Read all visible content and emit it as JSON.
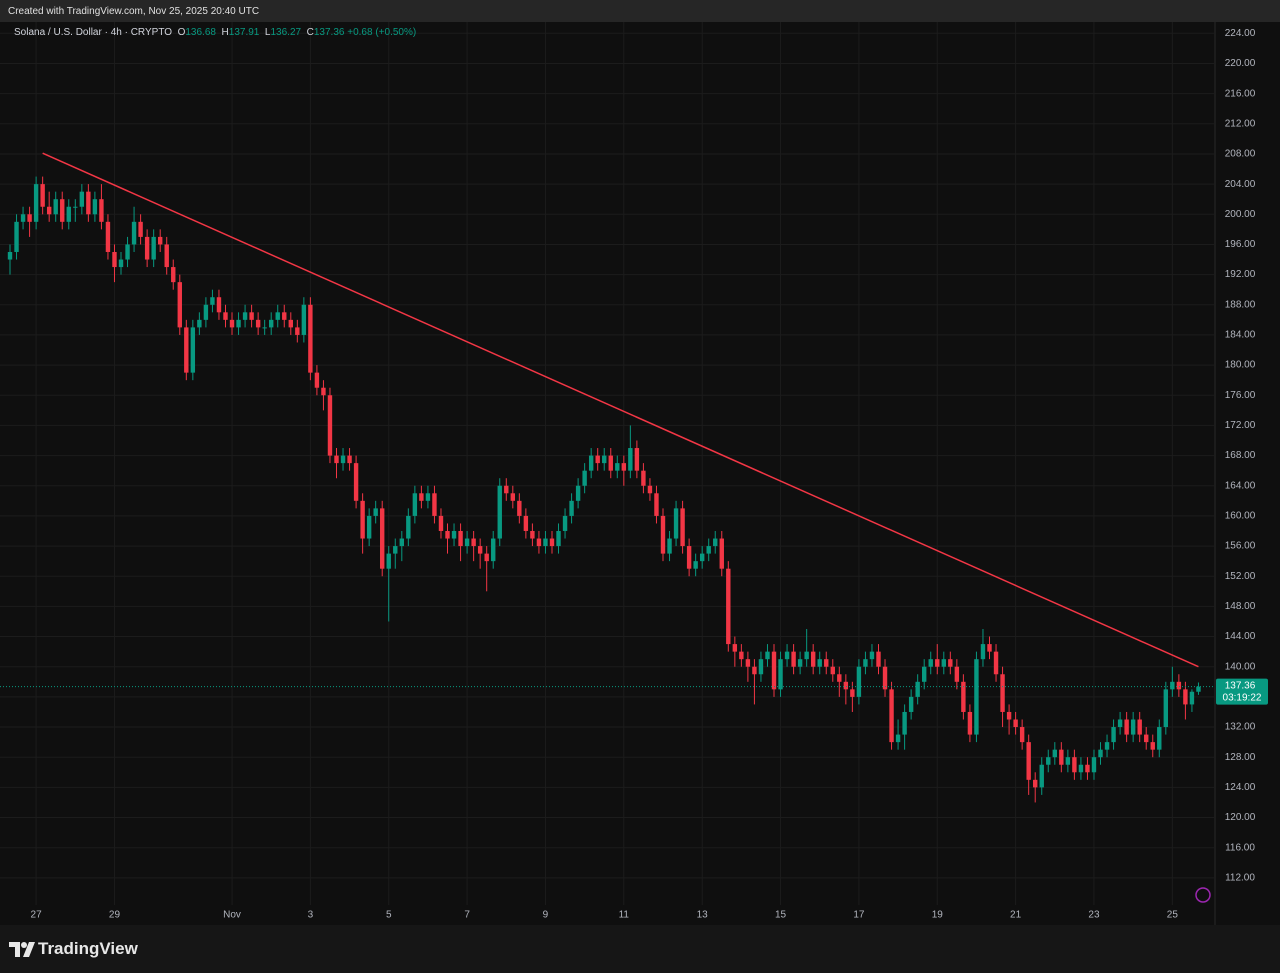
{
  "created_with": "Created with TradingView.com, Nov 25, 2025 20:40 UTC",
  "logo": "TradingView",
  "chart_data": {
    "type": "candlestick",
    "title": "Solana / U.S. Dollar · 4h · CRYPTO",
    "ohlc_labels": [
      "O",
      "H",
      "L",
      "C"
    ],
    "change": "+0.68 (+0.50%)",
    "countdown": "03:19:22",
    "up_color": "#089981",
    "down_color": "#f23645",
    "grid": true,
    "ylim": [
      108.4,
      225.5
    ],
    "yticks": [
      {
        "value": 112,
        "label": "112.00"
      },
      {
        "value": 116,
        "label": "116.00"
      },
      {
        "value": 120,
        "label": "120.00"
      },
      {
        "value": 124,
        "label": "124.00"
      },
      {
        "value": 128,
        "label": "128.00"
      },
      {
        "value": 132,
        "label": "132.00"
      },
      {
        "value": 136,
        "label": "136.00"
      },
      {
        "value": 140,
        "label": "140.00"
      },
      {
        "value": 144,
        "label": "144.00"
      },
      {
        "value": 148,
        "label": "148.00"
      },
      {
        "value": 152,
        "label": "152.00"
      },
      {
        "value": 156,
        "label": "156.00"
      },
      {
        "value": 160,
        "label": "160.00"
      },
      {
        "value": 164,
        "label": "164.00"
      },
      {
        "value": 168,
        "label": "168.00"
      },
      {
        "value": 172,
        "label": "172.00"
      },
      {
        "value": 176,
        "label": "176.00"
      },
      {
        "value": 180,
        "label": "180.00"
      },
      {
        "value": 184,
        "label": "184.00"
      },
      {
        "value": 188,
        "label": "188.00"
      },
      {
        "value": 192,
        "label": "192.00"
      },
      {
        "value": 196,
        "label": "196.00"
      },
      {
        "value": 200,
        "label": "200.00"
      },
      {
        "value": 204,
        "label": "204.00"
      },
      {
        "value": 208,
        "label": "208.00"
      },
      {
        "value": 212,
        "label": "212.00"
      },
      {
        "value": 216,
        "label": "216.00"
      },
      {
        "value": 220,
        "label": "220.00"
      },
      {
        "value": 224,
        "label": "224.00"
      }
    ],
    "categories": [
      null,
      null,
      null,
      null,
      "27",
      null,
      null,
      null,
      null,
      null,
      null,
      null,
      null,
      null,
      null,
      null,
      "29",
      null,
      null,
      null,
      null,
      null,
      null,
      null,
      null,
      null,
      null,
      null,
      null,
      null,
      null,
      null,
      null,
      null,
      "Nov",
      null,
      null,
      null,
      null,
      null,
      null,
      null,
      null,
      null,
      null,
      null,
      "3",
      null,
      null,
      null,
      null,
      null,
      null,
      null,
      null,
      null,
      null,
      null,
      "5",
      null,
      null,
      null,
      null,
      null,
      null,
      null,
      null,
      null,
      null,
      null,
      "7",
      null,
      null,
      null,
      null,
      null,
      null,
      null,
      null,
      null,
      null,
      null,
      "9",
      null,
      null,
      null,
      null,
      null,
      null,
      null,
      null,
      null,
      null,
      null,
      "11",
      null,
      null,
      null,
      null,
      null,
      null,
      null,
      null,
      null,
      null,
      null,
      "13",
      null,
      null,
      null,
      null,
      null,
      null,
      null,
      null,
      null,
      null,
      null,
      "15",
      null,
      null,
      null,
      null,
      null,
      null,
      null,
      null,
      null,
      null,
      null,
      "17",
      null,
      null,
      null,
      null,
      null,
      null,
      null,
      null,
      null,
      null,
      null,
      "19",
      null,
      null,
      null,
      null,
      null,
      null,
      null,
      null,
      null,
      null,
      null,
      "21",
      null,
      null,
      null,
      null,
      null,
      null,
      null,
      null,
      null,
      null,
      null,
      "23",
      null,
      null,
      null,
      null,
      null,
      null,
      null,
      null,
      null,
      null,
      null,
      "25",
      null,
      null,
      null,
      null
    ],
    "open": [
      194,
      195,
      199,
      200,
      199,
      204,
      201,
      200,
      202,
      199,
      201,
      201,
      203,
      200,
      202,
      199,
      195,
      193,
      194,
      196,
      199,
      197,
      194,
      197,
      196,
      193,
      191,
      185,
      179,
      185,
      186,
      188,
      189,
      187,
      186,
      185,
      186,
      187,
      186,
      185,
      185,
      186,
      187,
      186,
      185,
      184,
      188,
      179,
      177,
      176,
      168,
      167,
      168,
      167,
      162,
      157,
      160,
      161,
      153,
      155,
      156,
      157,
      160,
      163,
      162,
      163,
      160,
      158,
      157,
      158,
      156,
      157,
      156,
      155,
      154,
      157,
      164,
      163,
      162,
      160,
      158,
      157,
      156,
      157,
      156,
      158,
      160,
      162,
      164,
      166,
      168,
      167,
      168,
      166,
      167,
      166,
      169,
      166,
      164,
      163,
      160,
      155,
      157,
      161,
      156,
      153,
      154,
      155,
      156,
      157,
      153,
      143,
      142,
      141,
      140,
      139,
      141,
      142,
      137,
      141,
      142,
      140,
      141,
      142,
      140,
      141,
      140,
      139,
      138,
      137,
      136,
      140,
      141,
      142,
      140,
      137,
      130,
      131,
      134,
      136,
      138,
      140,
      141,
      140,
      141,
      140,
      138,
      134,
      131,
      141,
      143,
      142,
      139,
      134,
      133,
      132,
      130,
      125,
      124,
      127,
      128,
      129,
      127,
      128,
      126,
      127,
      126,
      128,
      129,
      130,
      132,
      133,
      131,
      133,
      131,
      130,
      129,
      132,
      137,
      138,
      137,
      135,
      136.68
    ],
    "high": [
      196,
      200,
      201,
      201,
      205,
      205,
      203,
      203,
      203,
      202,
      202,
      204,
      204,
      203,
      204,
      200,
      196,
      195,
      197,
      201,
      200,
      198,
      198,
      198,
      197,
      194,
      192,
      186,
      186,
      187,
      189,
      190,
      190,
      188,
      187,
      187,
      188,
      188,
      187,
      186,
      187,
      188,
      188,
      187,
      186,
      189,
      189,
      180,
      178,
      177,
      169,
      169,
      169,
      168,
      163,
      161,
      162,
      162,
      156,
      157,
      158,
      161,
      164,
      164,
      164,
      164,
      161,
      159,
      159,
      159,
      158,
      158,
      157,
      156,
      158,
      165,
      165,
      164,
      163,
      161,
      159,
      158,
      158,
      158,
      159,
      161,
      163,
      165,
      167,
      169,
      169,
      169,
      169,
      168,
      168,
      172,
      170,
      167,
      165,
      164,
      161,
      158,
      162,
      162,
      157,
      155,
      156,
      157,
      158,
      158,
      154,
      144,
      143,
      142,
      141,
      142,
      143,
      143,
      142,
      143,
      143,
      142,
      145,
      143,
      142,
      142,
      141,
      140,
      139,
      138,
      141,
      142,
      143,
      143,
      141,
      138,
      133,
      135,
      137,
      139,
      141,
      142,
      143,
      142,
      142,
      141,
      139,
      135,
      142,
      145,
      144,
      143,
      140,
      135,
      134,
      133,
      131,
      126,
      128,
      129,
      130,
      130,
      129,
      129,
      128,
      128,
      129,
      130,
      131,
      133,
      134,
      134,
      134,
      134,
      132,
      131,
      133,
      138,
      140,
      139,
      138,
      137,
      137.91
    ],
    "low": [
      192,
      194,
      198,
      197,
      198,
      200,
      199,
      199,
      198,
      198,
      199,
      200,
      199,
      199,
      198,
      194,
      191,
      192,
      193,
      195,
      196,
      193,
      193,
      195,
      192,
      190,
      184,
      178,
      178,
      184,
      185,
      187,
      186,
      185,
      184,
      184,
      185,
      185,
      184,
      184,
      184,
      185,
      185,
      184,
      183,
      183,
      178,
      176,
      174,
      167,
      165,
      166,
      166,
      161,
      155,
      156,
      159,
      152,
      146,
      153,
      154,
      156,
      159,
      161,
      161,
      159,
      157,
      155,
      156,
      154,
      155,
      154,
      153,
      150,
      153,
      156,
      162,
      161,
      159,
      157,
      156,
      155,
      155,
      155,
      155,
      157,
      159,
      161,
      163,
      165,
      166,
      166,
      165,
      165,
      164,
      165,
      165,
      163,
      162,
      159,
      154,
      154,
      156,
      155,
      152,
      152,
      153,
      154,
      155,
      152,
      142,
      140,
      140,
      138,
      135,
      138,
      140,
      136,
      136,
      140,
      139,
      139,
      140,
      139,
      139,
      139,
      138,
      136,
      135,
      134,
      135,
      139,
      140,
      139,
      136,
      129,
      129,
      129,
      133,
      135,
      137,
      139,
      139,
      139,
      139,
      137,
      133,
      130,
      130,
      140,
      141,
      138,
      132,
      131,
      131,
      129,
      123,
      122,
      123,
      126,
      127,
      126,
      126,
      125,
      125,
      125,
      125,
      127,
      128,
      129,
      131,
      130,
      130,
      130,
      129,
      128,
      128,
      131,
      136,
      136,
      133,
      134,
      136.27
    ],
    "close": [
      195,
      199,
      200,
      199,
      204,
      201,
      200,
      202,
      199,
      201,
      201,
      203,
      200,
      202,
      199,
      195,
      193,
      194,
      196,
      199,
      197,
      194,
      197,
      196,
      193,
      191,
      185,
      179,
      185,
      186,
      188,
      189,
      187,
      186,
      185,
      186,
      187,
      186,
      185,
      185,
      186,
      187,
      186,
      185,
      184,
      188,
      179,
      177,
      176,
      168,
      167,
      168,
      167,
      162,
      157,
      160,
      161,
      153,
      155,
      156,
      157,
      160,
      163,
      162,
      163,
      160,
      158,
      157,
      158,
      156,
      157,
      156,
      155,
      154,
      157,
      164,
      163,
      162,
      160,
      158,
      157,
      156,
      157,
      156,
      158,
      160,
      162,
      164,
      166,
      168,
      167,
      168,
      166,
      167,
      166,
      169,
      166,
      164,
      163,
      160,
      155,
      157,
      161,
      156,
      153,
      154,
      155,
      156,
      157,
      153,
      143,
      142,
      141,
      140,
      139,
      141,
      142,
      137,
      141,
      142,
      140,
      141,
      142,
      140,
      141,
      140,
      139,
      138,
      137,
      136,
      140,
      141,
      142,
      140,
      137,
      130,
      131,
      134,
      136,
      138,
      140,
      141,
      140,
      141,
      140,
      138,
      134,
      131,
      141,
      143,
      142,
      139,
      134,
      133,
      132,
      130,
      125,
      124,
      127,
      128,
      129,
      127,
      128,
      126,
      127,
      126,
      128,
      129,
      130,
      132,
      133,
      131,
      133,
      131,
      130,
      129,
      132,
      137,
      138,
      137,
      135,
      136.68,
      137.36
    ],
    "trend_line": {
      "color": "#f23645",
      "x": [
        5,
        182
      ],
      "y": [
        208.1,
        140.0
      ]
    }
  }
}
